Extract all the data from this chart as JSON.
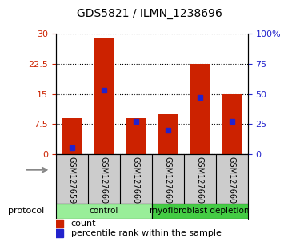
{
  "title": "GDS5821 / ILMN_1238696",
  "samples": [
    "GSM1276599",
    "GSM1276600",
    "GSM1276601",
    "GSM1276602",
    "GSM1276603",
    "GSM1276604"
  ],
  "counts": [
    9.0,
    29.0,
    9.0,
    10.0,
    22.5,
    15.0
  ],
  "percentiles": [
    5.0,
    53.0,
    27.0,
    20.0,
    47.0,
    27.0
  ],
  "bar_color": "#cc2200",
  "marker_color": "#2222cc",
  "ylim_left": [
    0,
    30
  ],
  "ylim_right": [
    0,
    100
  ],
  "yticks_left": [
    0,
    7.5,
    15,
    22.5,
    30
  ],
  "yticks_right": [
    0,
    25,
    50,
    75,
    100
  ],
  "ytick_labels_right": [
    "0",
    "25",
    "50",
    "75",
    "100%"
  ],
  "protocol_groups": [
    {
      "label": "control",
      "start": 0,
      "end": 3,
      "color": "#99ee99"
    },
    {
      "label": "myofibroblast depletion",
      "start": 3,
      "end": 6,
      "color": "#44cc44"
    }
  ],
  "protocol_label": "protocol",
  "legend_count_label": "count",
  "legend_pct_label": "percentile rank within the sample",
  "bar_width": 0.6,
  "background_color": "#ffffff",
  "label_bg_color": "#cccccc"
}
